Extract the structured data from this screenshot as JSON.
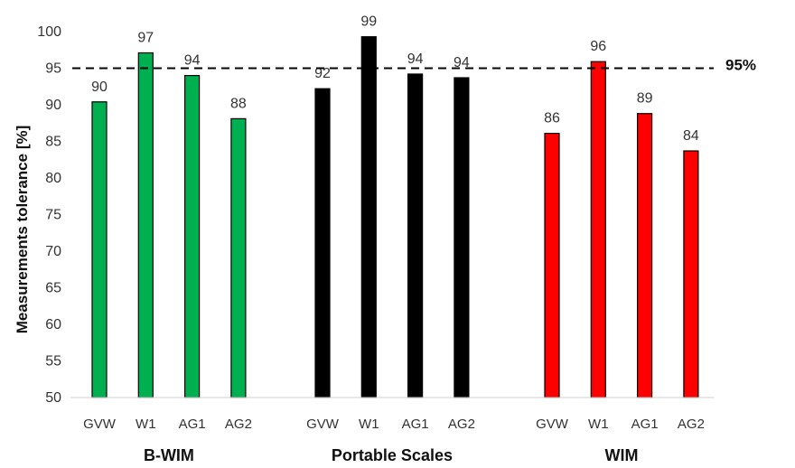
{
  "chart_data": {
    "type": "bar",
    "ylabel": "Measurements tolerance [%]",
    "ylim": [
      50,
      100
    ],
    "yticks": [
      50,
      55,
      60,
      65,
      70,
      75,
      80,
      85,
      90,
      95,
      100
    ],
    "categories": [
      "GVW",
      "W1",
      "AG1",
      "AG2"
    ],
    "groups": [
      {
        "name": "B-WIM",
        "color": "#00b050",
        "values": [
          90.4,
          97.1,
          94.0,
          88.1
        ],
        "labels": [
          "90",
          "97",
          "94",
          "88"
        ]
      },
      {
        "name": "Portable Scales",
        "color": "#000000",
        "values": [
          92.2,
          99.3,
          94.2,
          93.7
        ],
        "labels": [
          "92",
          "99",
          "94",
          "94"
        ]
      },
      {
        "name": "WIM",
        "color": "#ff0000",
        "values": [
          86.1,
          95.9,
          88.8,
          83.7
        ],
        "labels": [
          "86",
          "96",
          "89",
          "84"
        ]
      }
    ],
    "reference_line": {
      "value": 95,
      "label": "95%",
      "style": "dashed"
    },
    "grid": false,
    "legend": "none"
  }
}
